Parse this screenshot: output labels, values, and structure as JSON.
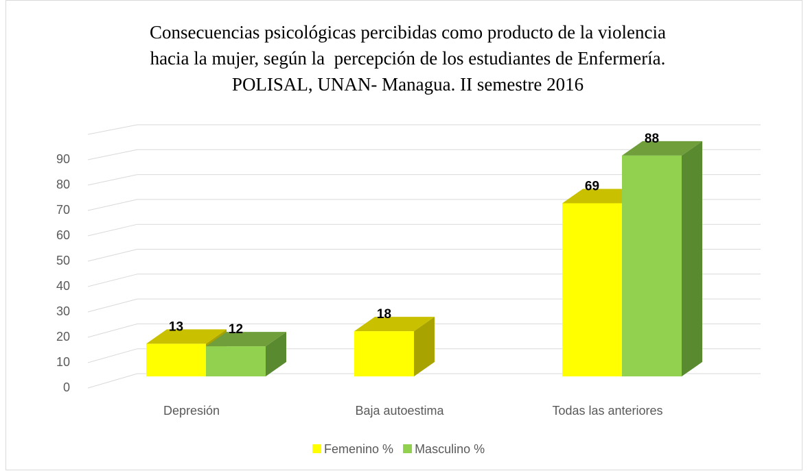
{
  "chart_data": {
    "type": "bar3d",
    "title": [
      "Consecuencias psicológicas percibidas como producto de la violencia",
      "hacia la mujer, según la  percepción de los estudiantes de Enfermería.",
      "POLISAL, UNAN- Managua. II semestre 2016"
    ],
    "categories": [
      "Depresión",
      "Baja autoestima",
      "Todas las anteriores"
    ],
    "series": [
      {
        "name": "Femenino %",
        "color": "#ffff00",
        "top": "#c9c000",
        "side": "#a9a300",
        "values": [
          13,
          18,
          69
        ]
      },
      {
        "name": "Masculino %",
        "color": "#92d050",
        "top": "#6f9e3b",
        "side": "#5a8a30",
        "values": [
          12,
          null,
          88
        ]
      }
    ],
    "ylim": [
      0,
      100
    ],
    "yticks": [
      0,
      10,
      20,
      30,
      40,
      50,
      60,
      70,
      80,
      90
    ],
    "grid": true,
    "legend": "bottom"
  }
}
